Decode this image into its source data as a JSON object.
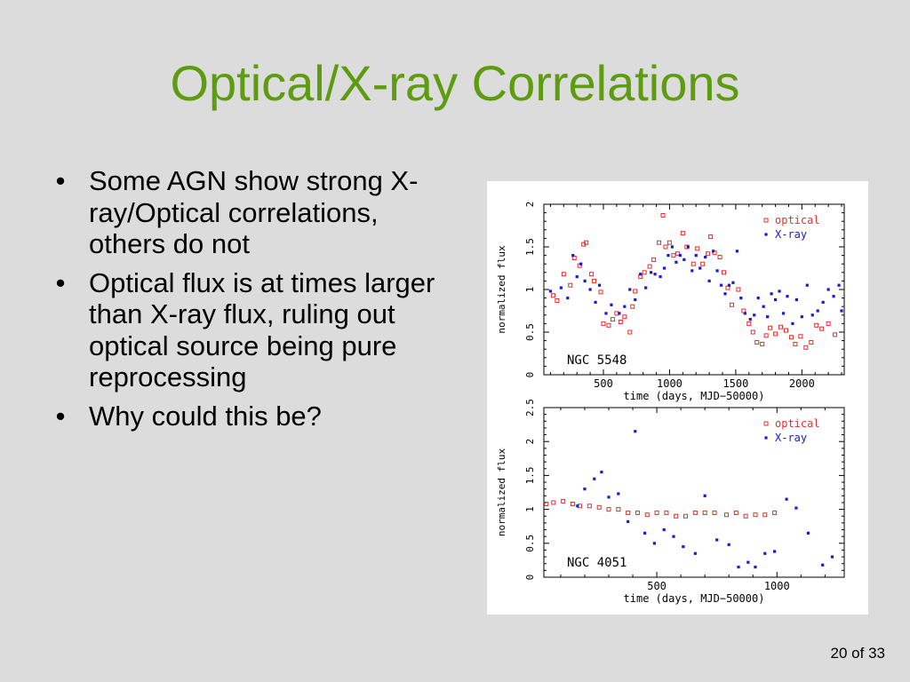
{
  "slide": {
    "title": "Optical/X-ray Correlations",
    "page_number": "20 of 33",
    "bullet_marker": "•"
  },
  "bullets": [
    "Some AGN show strong X-ray/Optical correlations, others do not",
    "Optical flux is at times larger than X-ray flux, ruling out optical source being pure reprocessing",
    "Why could this be?"
  ],
  "colors": {
    "title": "#5d9b0f",
    "optical": "#e0312f",
    "xray": "#1a1ad0"
  },
  "chart_data": [
    {
      "type": "scatter",
      "annotation": "NGC 5548",
      "xlabel": "time (days, MJD−50000)",
      "ylabel": "normalized flux",
      "xlim": [
        50,
        2320
      ],
      "ylim": [
        0,
        2
      ],
      "xticks": [
        500,
        1000,
        1500,
        2000
      ],
      "yticks": [
        0,
        0.5,
        1,
        1.5,
        2
      ],
      "legend_position": "top-right",
      "series": [
        {
          "name": "optical",
          "marker": "open-square",
          "color": "#e0312f",
          "points": [
            [
              120,
              0.93
            ],
            [
              150,
              0.87
            ],
            [
              200,
              1.18
            ],
            [
              250,
              1.05
            ],
            [
              280,
              1.37
            ],
            [
              320,
              1.28
            ],
            [
              350,
              1.53
            ],
            [
              370,
              1.55
            ],
            [
              410,
              1.18
            ],
            [
              430,
              1.1
            ],
            [
              480,
              0.97
            ],
            [
              500,
              0.6
            ],
            [
              540,
              0.58
            ],
            [
              570,
              0.65
            ],
            [
              600,
              0.72
            ],
            [
              630,
              0.62
            ],
            [
              660,
              0.68
            ],
            [
              700,
              0.5
            ],
            [
              720,
              0.8
            ],
            [
              740,
              0.98
            ],
            [
              780,
              1.15
            ],
            [
              810,
              1.2
            ],
            [
              850,
              1.27
            ],
            [
              880,
              1.35
            ],
            [
              920,
              1.55
            ],
            [
              950,
              1.87
            ],
            [
              970,
              1.5
            ],
            [
              1000,
              1.55
            ],
            [
              1030,
              1.4
            ],
            [
              1060,
              1.42
            ],
            [
              1100,
              1.66
            ],
            [
              1130,
              1.5
            ],
            [
              1180,
              1.3
            ],
            [
              1210,
              1.48
            ],
            [
              1250,
              1.3
            ],
            [
              1290,
              1.42
            ],
            [
              1310,
              1.62
            ],
            [
              1340,
              1.43
            ],
            [
              1380,
              1.38
            ],
            [
              1410,
              1.2
            ],
            [
              1440,
              1.02
            ],
            [
              1470,
              0.82
            ],
            [
              1520,
              1.0
            ],
            [
              1560,
              0.75
            ],
            [
              1600,
              0.6
            ],
            [
              1630,
              0.5
            ],
            [
              1660,
              0.38
            ],
            [
              1700,
              0.36
            ],
            [
              1730,
              0.46
            ],
            [
              1760,
              0.55
            ],
            [
              1800,
              0.48
            ],
            [
              1840,
              0.56
            ],
            [
              1880,
              0.52
            ],
            [
              1920,
              0.44
            ],
            [
              1950,
              0.36
            ],
            [
              1990,
              0.45
            ],
            [
              2030,
              0.32
            ],
            [
              2070,
              0.38
            ],
            [
              2110,
              0.58
            ],
            [
              2150,
              0.54
            ],
            [
              2200,
              0.6
            ],
            [
              2250,
              0.47
            ]
          ]
        },
        {
          "name": "X-ray",
          "marker": "filled-square",
          "color": "#1a1ad0",
          "points": [
            [
              100,
              0.98
            ],
            [
              180,
              1.02
            ],
            [
              230,
              0.9
            ],
            [
              270,
              1.4
            ],
            [
              300,
              1.15
            ],
            [
              330,
              1.3
            ],
            [
              360,
              1.1
            ],
            [
              400,
              1.0
            ],
            [
              440,
              0.85
            ],
            [
              470,
              1.05
            ],
            [
              520,
              0.72
            ],
            [
              560,
              0.82
            ],
            [
              620,
              0.72
            ],
            [
              660,
              0.8
            ],
            [
              700,
              1.0
            ],
            [
              740,
              0.88
            ],
            [
              780,
              1.18
            ],
            [
              820,
              1.02
            ],
            [
              860,
              1.2
            ],
            [
              890,
              1.18
            ],
            [
              930,
              1.15
            ],
            [
              960,
              1.25
            ],
            [
              990,
              1.4
            ],
            [
              1020,
              1.5
            ],
            [
              1050,
              1.32
            ],
            [
              1080,
              1.4
            ],
            [
              1110,
              1.35
            ],
            [
              1140,
              1.5
            ],
            [
              1170,
              1.22
            ],
            [
              1200,
              1.4
            ],
            [
              1230,
              1.25
            ],
            [
              1270,
              1.38
            ],
            [
              1300,
              1.1
            ],
            [
              1330,
              1.45
            ],
            [
              1360,
              1.22
            ],
            [
              1390,
              1.05
            ],
            [
              1420,
              0.95
            ],
            [
              1450,
              1.05
            ],
            [
              1480,
              1.08
            ],
            [
              1510,
              1.45
            ],
            [
              1540,
              0.9
            ],
            [
              1570,
              0.72
            ],
            [
              1610,
              0.65
            ],
            [
              1640,
              0.7
            ],
            [
              1670,
              0.9
            ],
            [
              1710,
              0.8
            ],
            [
              1740,
              0.68
            ],
            [
              1770,
              0.95
            ],
            [
              1800,
              0.88
            ],
            [
              1830,
              0.98
            ],
            [
              1860,
              0.72
            ],
            [
              1890,
              0.92
            ],
            [
              1930,
              0.6
            ],
            [
              1960,
              0.88
            ],
            [
              2000,
              0.68
            ],
            [
              2040,
              1.05
            ],
            [
              2080,
              0.7
            ],
            [
              2120,
              0.75
            ],
            [
              2160,
              0.85
            ],
            [
              2200,
              1.0
            ],
            [
              2240,
              0.92
            ],
            [
              2280,
              1.05
            ],
            [
              2300,
              0.75
            ]
          ]
        }
      ]
    },
    {
      "type": "scatter",
      "annotation": "NGC 4051",
      "xlabel": "time (days, MJD−50000)",
      "ylabel": "normalized flux",
      "xlim": [
        30,
        1280
      ],
      "ylim": [
        0,
        2.5
      ],
      "xticks": [
        500,
        1000
      ],
      "yticks": [
        0,
        0.5,
        1,
        1.5,
        2,
        2.5
      ],
      "legend_position": "top-right",
      "series": [
        {
          "name": "optical",
          "marker": "open-square",
          "color": "#e0312f",
          "points": [
            [
              40,
              1.08
            ],
            [
              70,
              1.1
            ],
            [
              110,
              1.12
            ],
            [
              150,
              1.08
            ],
            [
              180,
              1.05
            ],
            [
              220,
              1.05
            ],
            [
              260,
              1.03
            ],
            [
              300,
              1.0
            ],
            [
              340,
              1.0
            ],
            [
              380,
              0.95
            ],
            [
              420,
              0.95
            ],
            [
              460,
              0.92
            ],
            [
              500,
              0.95
            ],
            [
              540,
              0.95
            ],
            [
              580,
              0.9
            ],
            [
              620,
              0.9
            ],
            [
              660,
              0.95
            ],
            [
              700,
              0.95
            ],
            [
              740,
              0.95
            ],
            [
              790,
              0.92
            ],
            [
              830,
              0.95
            ],
            [
              870,
              0.9
            ],
            [
              910,
              0.92
            ],
            [
              950,
              0.92
            ],
            [
              990,
              0.95
            ]
          ]
        },
        {
          "name": "X-ray",
          "marker": "filled-square",
          "color": "#1a1ad0",
          "points": [
            [
              170,
              1.05
            ],
            [
              200,
              1.3
            ],
            [
              240,
              1.45
            ],
            [
              270,
              1.55
            ],
            [
              300,
              1.18
            ],
            [
              340,
              1.23
            ],
            [
              380,
              0.82
            ],
            [
              410,
              2.15
            ],
            [
              450,
              0.65
            ],
            [
              490,
              0.5
            ],
            [
              530,
              0.7
            ],
            [
              570,
              0.6
            ],
            [
              610,
              0.45
            ],
            [
              660,
              0.35
            ],
            [
              700,
              1.2
            ],
            [
              750,
              0.55
            ],
            [
              800,
              0.48
            ],
            [
              840,
              0.15
            ],
            [
              880,
              0.22
            ],
            [
              910,
              0.15
            ],
            [
              950,
              0.35
            ],
            [
              990,
              0.38
            ],
            [
              1040,
              1.15
            ],
            [
              1080,
              1.02
            ],
            [
              1130,
              0.65
            ],
            [
              1190,
              0.18
            ],
            [
              1230,
              0.3
            ]
          ]
        }
      ]
    }
  ]
}
